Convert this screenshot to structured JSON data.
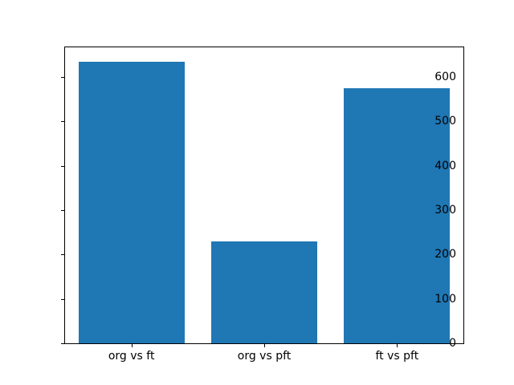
{
  "figure": {
    "background": "#ffffff",
    "spine_color": "#000000",
    "tick_color": "#000000",
    "text_color": "#000000"
  },
  "chart_data": {
    "type": "bar",
    "title": "",
    "xlabel": "",
    "ylabel": "",
    "categories": [
      "org vs ft",
      "org vs pft",
      "ft vs pft"
    ],
    "values": [
      635,
      230,
      575
    ],
    "bar_color": "#1f77b4",
    "bar_width_fraction": 0.8,
    "ylim": [
      0,
      667
    ],
    "xlim": [
      -0.5,
      2.5
    ],
    "yticks": [
      0,
      100,
      200,
      300,
      400,
      500,
      600
    ],
    "grid": false,
    "legend": null
  }
}
